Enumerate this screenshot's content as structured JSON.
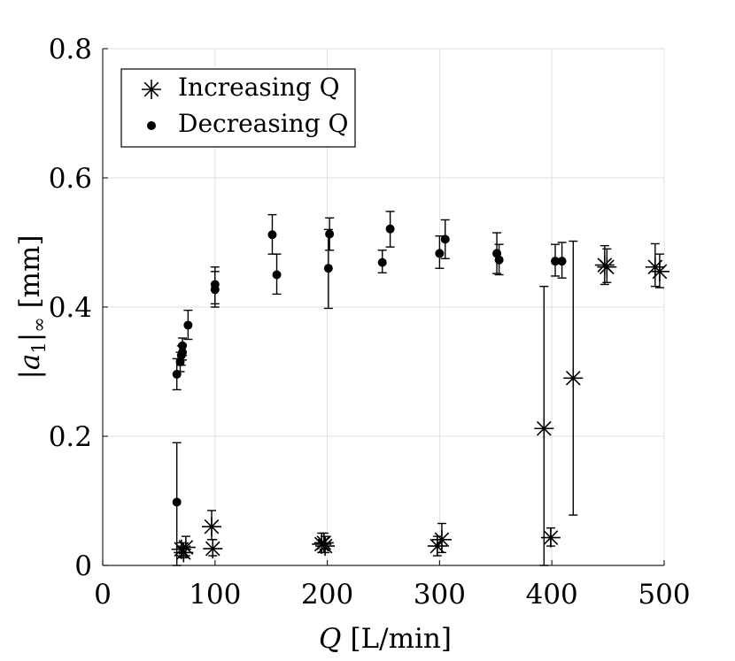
{
  "chart_data": {
    "type": "scatter",
    "title": "",
    "xlabel": "Q",
    "xlabel_unit": "[L/min]",
    "ylabel": "|a",
    "ylabel_sub": "1",
    "ylabel_mid": "|",
    "ylabel_sub2": "∞",
    "ylabel_unit": " [mm]",
    "xlim": [
      0,
      500
    ],
    "ylim": [
      0,
      0.8
    ],
    "xticks": [
      0,
      100,
      200,
      300,
      400,
      500
    ],
    "xtick_labels": [
      "0",
      "100",
      "200",
      "300",
      "400",
      "500"
    ],
    "yticks": [
      0,
      0.2,
      0.4,
      0.6,
      0.8
    ],
    "ytick_labels": [
      "0",
      "0.2",
      "0.4",
      "0.6",
      "0.8"
    ],
    "grid": true,
    "legend_position": "top-left",
    "series": [
      {
        "name": "Increasing Q",
        "marker": "asterisk",
        "points": [
          {
            "x": 70,
            "y": 0.025,
            "lo": 0.015,
            "hi": 0.035
          },
          {
            "x": 72,
            "y": 0.02,
            "lo": 0.012,
            "hi": 0.03
          },
          {
            "x": 74,
            "y": 0.028,
            "lo": 0.015,
            "hi": 0.045
          },
          {
            "x": 97,
            "y": 0.06,
            "lo": 0.04,
            "hi": 0.085
          },
          {
            "x": 98,
            "y": 0.026,
            "lo": 0.015,
            "hi": 0.04
          },
          {
            "x": 195,
            "y": 0.033,
            "lo": 0.02,
            "hi": 0.05
          },
          {
            "x": 197,
            "y": 0.035,
            "lo": 0.025,
            "hi": 0.05
          },
          {
            "x": 198,
            "y": 0.03,
            "lo": 0.02,
            "hi": 0.045
          },
          {
            "x": 298,
            "y": 0.03,
            "lo": 0.015,
            "hi": 0.045
          },
          {
            "x": 302,
            "y": 0.04,
            "lo": 0.02,
            "hi": 0.065
          },
          {
            "x": 393,
            "y": 0.212,
            "lo": 0.0,
            "hi": 0.432
          },
          {
            "x": 399,
            "y": 0.043,
            "lo": 0.03,
            "hi": 0.058
          },
          {
            "x": 419,
            "y": 0.29,
            "lo": 0.078,
            "hi": 0.502
          },
          {
            "x": 447,
            "y": 0.465,
            "lo": 0.435,
            "hi": 0.495
          },
          {
            "x": 449,
            "y": 0.462,
            "lo": 0.438,
            "hi": 0.49
          },
          {
            "x": 492,
            "y": 0.462,
            "lo": 0.432,
            "hi": 0.498
          },
          {
            "x": 496,
            "y": 0.455,
            "lo": 0.43,
            "hi": 0.482
          }
        ]
      },
      {
        "name": "Decreasing Q",
        "marker": "dot",
        "points": [
          {
            "x": 66,
            "y": 0.098,
            "lo": 0.0,
            "hi": 0.19
          },
          {
            "x": 66,
            "y": 0.296,
            "lo": 0.272,
            "hi": 0.32
          },
          {
            "x": 69,
            "y": 0.315,
            "lo": 0.3,
            "hi": 0.33
          },
          {
            "x": 70,
            "y": 0.325,
            "lo": 0.31,
            "hi": 0.34
          },
          {
            "x": 71,
            "y": 0.34,
            "lo": 0.325,
            "hi": 0.352
          },
          {
            "x": 71,
            "y": 0.33,
            "lo": 0.318,
            "hi": 0.342
          },
          {
            "x": 76,
            "y": 0.372,
            "lo": 0.35,
            "hi": 0.395
          },
          {
            "x": 100,
            "y": 0.427,
            "lo": 0.4,
            "hi": 0.455
          },
          {
            "x": 100,
            "y": 0.435,
            "lo": 0.405,
            "hi": 0.462
          },
          {
            "x": 151,
            "y": 0.512,
            "lo": 0.482,
            "hi": 0.543
          },
          {
            "x": 155,
            "y": 0.45,
            "lo": 0.42,
            "hi": 0.482
          },
          {
            "x": 201,
            "y": 0.46,
            "lo": 0.398,
            "hi": 0.52
          },
          {
            "x": 202,
            "y": 0.513,
            "lo": 0.488,
            "hi": 0.538
          },
          {
            "x": 249,
            "y": 0.469,
            "lo": 0.453,
            "hi": 0.488
          },
          {
            "x": 256,
            "y": 0.521,
            "lo": 0.493,
            "hi": 0.548
          },
          {
            "x": 300,
            "y": 0.483,
            "lo": 0.46,
            "hi": 0.51
          },
          {
            "x": 305,
            "y": 0.505,
            "lo": 0.475,
            "hi": 0.535
          },
          {
            "x": 351,
            "y": 0.483,
            "lo": 0.452,
            "hi": 0.515
          },
          {
            "x": 353,
            "y": 0.473,
            "lo": 0.45,
            "hi": 0.497
          },
          {
            "x": 403,
            "y": 0.471,
            "lo": 0.448,
            "hi": 0.497
          },
          {
            "x": 409,
            "y": 0.471,
            "lo": 0.445,
            "hi": 0.5
          }
        ]
      }
    ]
  }
}
